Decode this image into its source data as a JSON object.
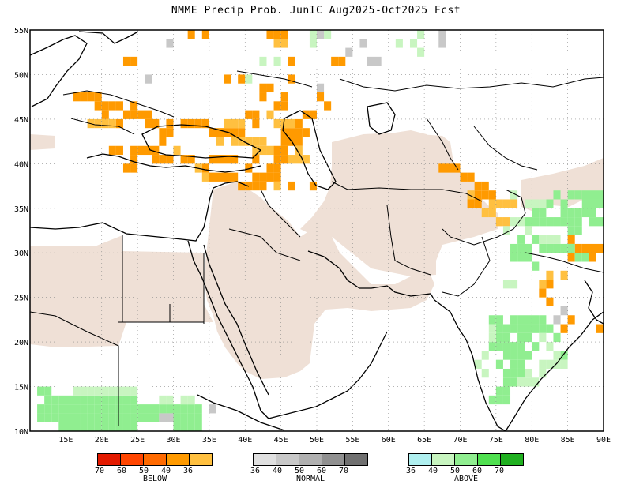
{
  "title": "NMME Precip Prob. JunIC  Aug2025-Oct2025 Fcst",
  "map": {
    "lon_range": [
      10,
      90
    ],
    "lat_range": [
      10,
      55
    ],
    "lat_labels": [
      "10N",
      "15N",
      "20N",
      "25N",
      "30N",
      "35N",
      "40N",
      "45N",
      "50N",
      "55N"
    ],
    "lon_labels": [
      "15E",
      "20E",
      "25E",
      "30E",
      "35E",
      "40E",
      "45E",
      "50E",
      "55E",
      "60E",
      "65E",
      "70E",
      "75E",
      "80E",
      "85E",
      "90E"
    ]
  },
  "legend": {
    "below": {
      "label": "BELOW",
      "ticks": [
        "70",
        "60",
        "50",
        "40",
        "36"
      ],
      "colors": [
        "#e31a00",
        "#ff4500",
        "#ff6a00",
        "#ff9a00",
        "#ffc040"
      ]
    },
    "normal": {
      "label": "NORMAL",
      "ticks": [
        "36",
        "40",
        "50",
        "60",
        "70"
      ],
      "colors": [
        "#e0e0e0",
        "#c8c8c8",
        "#b0b0b0",
        "#909090",
        "#707070"
      ]
    },
    "above": {
      "label": "ABOVE",
      "ticks": [
        "36",
        "40",
        "50",
        "60",
        "70"
      ],
      "colors": [
        "#b0f0f0",
        "#c8f5c0",
        "#90ee90",
        "#50e050",
        "#20b020"
      ]
    }
  },
  "colors": {
    "dry_mask": "#efe0d6",
    "below_40": "#ff9a00",
    "below_36": "#ffc040",
    "above_40": "#c8f5c0",
    "above_50": "#90ee90",
    "normal_40": "#c8c8c8"
  }
}
